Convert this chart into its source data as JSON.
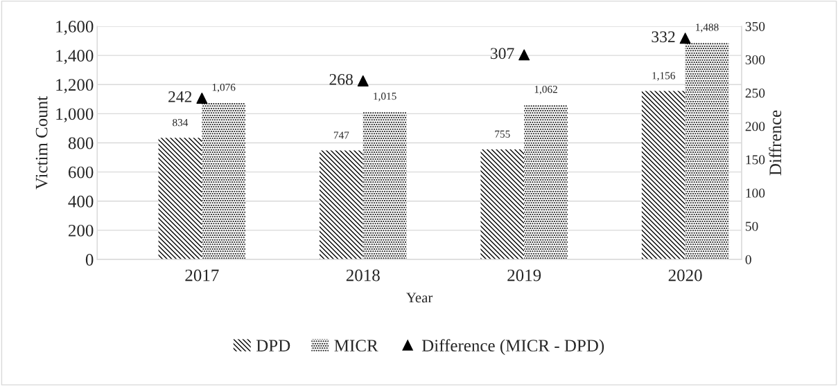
{
  "chart_data": {
    "type": "bar",
    "xlabel": "Year",
    "ylabel": "Victim Count",
    "y2label": "Diffrence",
    "categories": [
      "2017",
      "2018",
      "2019",
      "2020"
    ],
    "series": [
      {
        "name": "DPD",
        "color": "#000000",
        "values": [
          834,
          747,
          755,
          1156
        ],
        "value_labels": [
          "834",
          "747",
          "755",
          "1,156"
        ]
      },
      {
        "name": "MICR",
        "color": "#000000",
        "values": [
          1076,
          1015,
          1062,
          1488
        ],
        "value_labels": [
          "1,076",
          "1,015",
          "1,062",
          "1,488"
        ]
      },
      {
        "name": "Difference (MICR - DPD)",
        "type": "scatter",
        "axis": "y2",
        "marker": "triangle",
        "color": "#000000",
        "values": [
          242,
          268,
          307,
          332
        ],
        "value_labels": [
          "242",
          "268",
          "307",
          "332"
        ]
      }
    ],
    "ylim": [
      0,
      1600
    ],
    "yticks": [
      0,
      {
        "value": 200,
        "label": "200"
      },
      {
        "value": 400,
        "label": "400"
      },
      {
        "value": 600,
        "label": "600"
      },
      {
        "value": 800,
        "label": "800"
      },
      {
        "value": 1000,
        "label": "1,000"
      },
      {
        "value": 1200,
        "label": "1,200"
      },
      {
        "value": 1400,
        "label": "1,400"
      },
      {
        "value": 1600,
        "label": "1,600"
      }
    ],
    "y2lim": [
      0,
      350
    ],
    "y2ticks": [
      0,
      50,
      100,
      150,
      200,
      250,
      300,
      350
    ],
    "grid": "y",
    "legend": "bottom"
  }
}
